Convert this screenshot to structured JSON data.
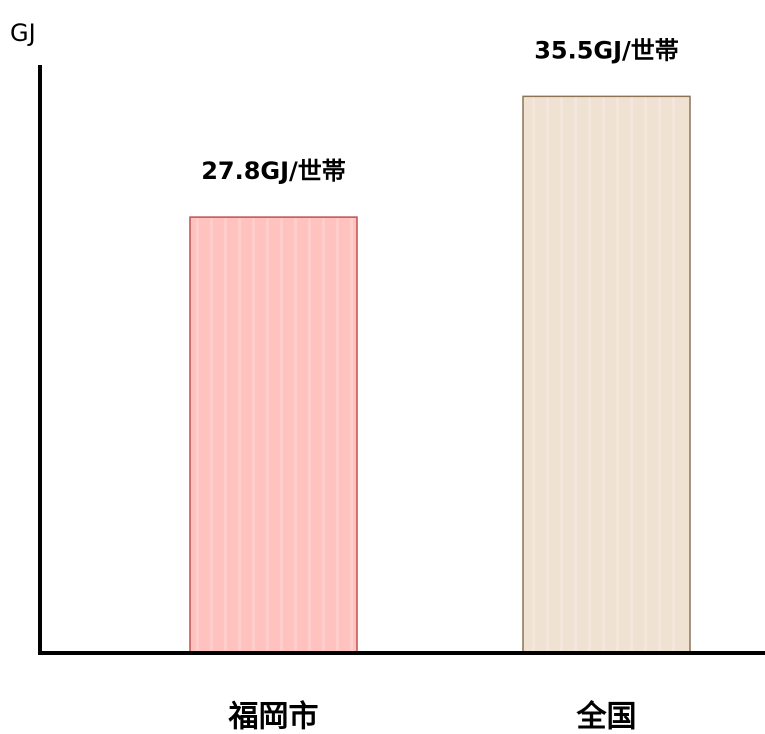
{
  "chart_data": {
    "type": "bar",
    "y_label": "GJ",
    "categories": [
      "福岡市",
      "全国"
    ],
    "values": [
      27.8,
      35.5
    ],
    "value_labels": [
      "27.8GJ/世帯",
      "35.5GJ/世帯"
    ],
    "colors": [
      "#ffc2bf",
      "#efe2d2"
    ],
    "edge_colors": [
      "#c0504d",
      "#8c7356"
    ],
    "ylim": [
      0,
      37.5
    ]
  }
}
